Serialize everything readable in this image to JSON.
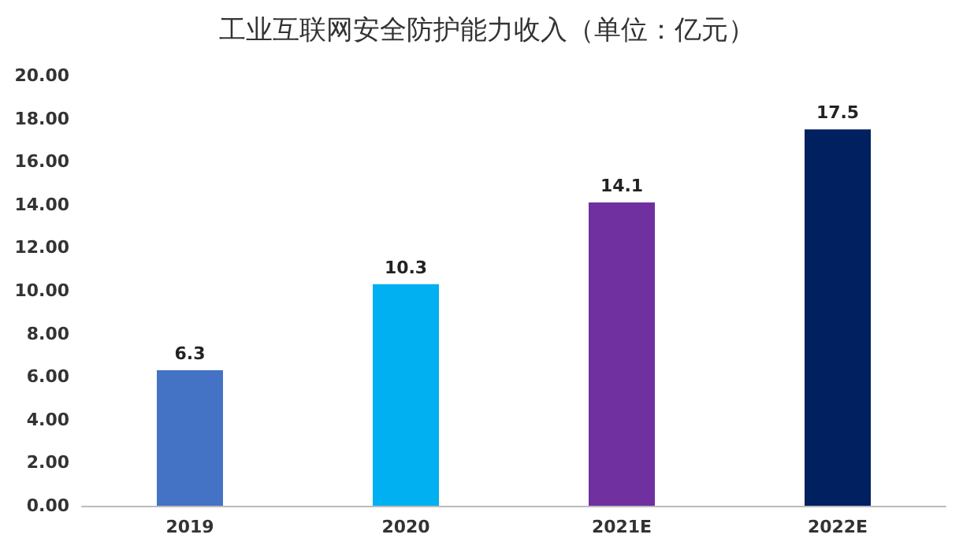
{
  "chart_data": {
    "type": "bar",
    "title": "工业互联网安全防护能力收入（单位：亿元）",
    "categories": [
      "2019",
      "2020",
      "2021E",
      "2022E"
    ],
    "values": [
      6.3,
      10.3,
      14.1,
      17.5
    ],
    "colors": [
      "#4472c4",
      "#00b0f0",
      "#7030a0",
      "#002060"
    ],
    "ylim": [
      0,
      20
    ],
    "yticks": [
      {
        "value": 0,
        "label": "0.00"
      },
      {
        "value": 2,
        "label": "2.00"
      },
      {
        "value": 4,
        "label": "4.00"
      },
      {
        "value": 6,
        "label": "6.00"
      },
      {
        "value": 8,
        "label": "8.00"
      },
      {
        "value": 10,
        "label": "10.00"
      },
      {
        "value": 12,
        "label": "12.00"
      },
      {
        "value": 14,
        "label": "14.00"
      },
      {
        "value": 16,
        "label": "16.00"
      },
      {
        "value": 18,
        "label": "18.00"
      },
      {
        "value": 20,
        "label": "20.00"
      }
    ],
    "data_labels": true,
    "grid": false
  }
}
